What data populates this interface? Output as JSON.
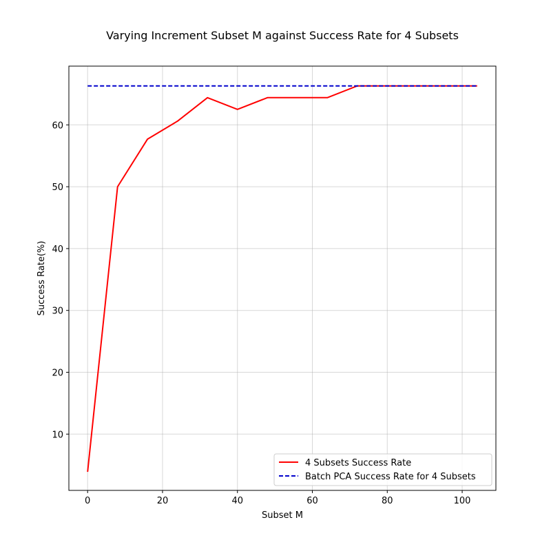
{
  "chart_data": {
    "type": "line",
    "title": "Varying Increment Subset M against Success Rate for 4 Subsets",
    "xlabel": "Subset M",
    "ylabel": "Success Rate(%)",
    "xlim": [
      -5,
      109
    ],
    "ylim": [
      0.9,
      69.5
    ],
    "xticks": [
      0,
      20,
      40,
      60,
      80,
      100
    ],
    "yticks": [
      10,
      20,
      30,
      40,
      50,
      60
    ],
    "grid": true,
    "legend_position": "lower-right",
    "series": [
      {
        "name": "4 Subsets Success Rate",
        "color": "#ff0000",
        "style": "solid",
        "x": [
          0,
          8,
          16,
          24,
          32,
          40,
          48,
          56,
          64,
          72,
          80,
          88,
          96,
          104
        ],
        "values": [
          3.9,
          50.0,
          57.7,
          60.6,
          64.4,
          62.5,
          64.4,
          64.4,
          64.4,
          66.3,
          66.3,
          66.3,
          66.3,
          66.3
        ]
      },
      {
        "name": "Batch PCA Success Rate for 4 Subsets",
        "color": "#0000cc",
        "style": "dashed",
        "x": [
          0,
          104
        ],
        "values": [
          66.3,
          66.3
        ]
      }
    ]
  }
}
